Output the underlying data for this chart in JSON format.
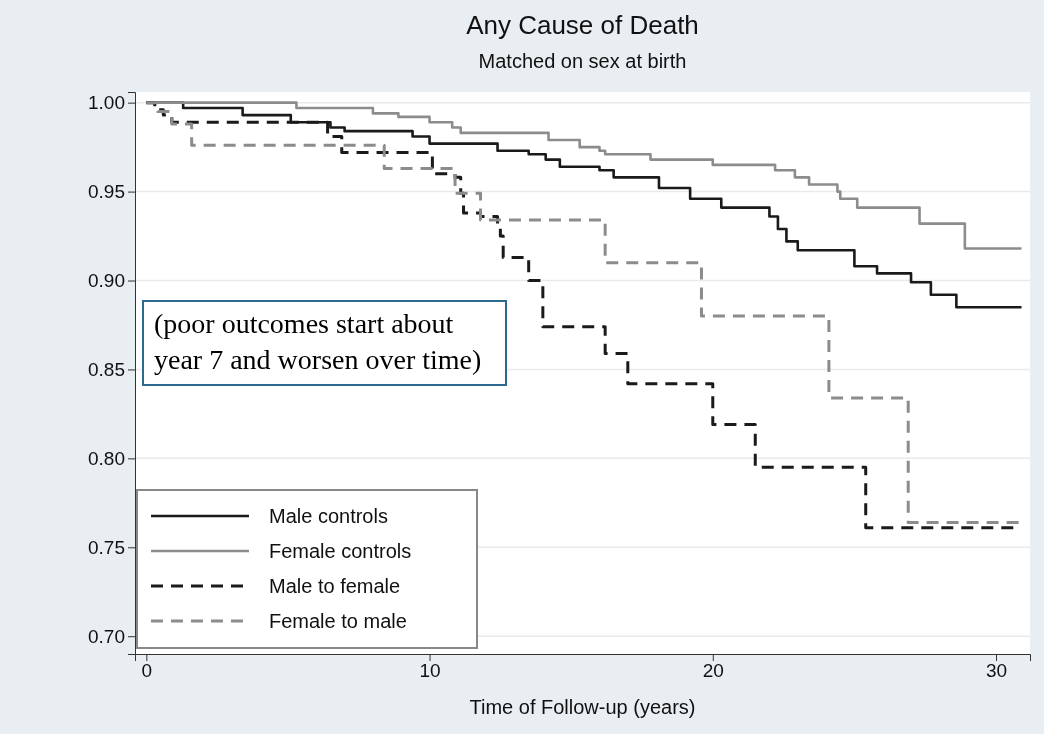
{
  "chart_data": {
    "type": "step",
    "title": "Any Cause of Death",
    "subtitle": "Matched on sex at birth",
    "xlabel": "Time of Follow-up (years)",
    "xlim": [
      -0.4,
      31.2
    ],
    "xticks": [
      0,
      10,
      20,
      30
    ],
    "ylim": [
      0.69,
      1.006
    ],
    "yticks": [
      {
        "value": 0.7,
        "label": "0.70"
      },
      {
        "value": 0.75,
        "label": "0.75"
      },
      {
        "value": 0.8,
        "label": "0.80"
      },
      {
        "value": 0.85,
        "label": "0.85"
      },
      {
        "value": 0.9,
        "label": "0.90"
      },
      {
        "value": 0.95,
        "label": "0.95"
      },
      {
        "value": 1.0,
        "label": "1.00"
      }
    ],
    "grid": "y",
    "legend": "bottom left",
    "annotations": [
      "(poor outcomes start about year 7 and worsen over time)"
    ],
    "series": [
      {
        "name": "Male controls",
        "color": "#1a1a1a",
        "line_style": "solid",
        "x": [
          0,
          1.3,
          3.4,
          5.1,
          6.5,
          7.0,
          9.4,
          10.0,
          12.4,
          13.5,
          14.1,
          14.6,
          16.0,
          16.5,
          18.1,
          19.2,
          20.3,
          22.0,
          22.3,
          22.6,
          23.0,
          25.0,
          25.8,
          27.0,
          27.7,
          28.6,
          30.9
        ],
        "values": [
          1.0,
          0.997,
          0.993,
          0.989,
          0.986,
          0.984,
          0.981,
          0.977,
          0.973,
          0.971,
          0.968,
          0.964,
          0.962,
          0.958,
          0.952,
          0.946,
          0.941,
          0.936,
          0.929,
          0.922,
          0.917,
          0.908,
          0.904,
          0.899,
          0.892,
          0.885,
          0.885
        ]
      },
      {
        "name": "Female controls",
        "color": "#8c8c8c",
        "line_style": "solid",
        "x": [
          0,
          5.3,
          8.0,
          8.9,
          10.0,
          10.8,
          11.1,
          14.2,
          15.3,
          16.0,
          16.2,
          17.8,
          20.0,
          22.2,
          22.9,
          23.4,
          24.4,
          24.5,
          25.1,
          27.3,
          28.9,
          30.9
        ],
        "values": [
          1.0,
          0.997,
          0.994,
          0.992,
          0.989,
          0.986,
          0.983,
          0.979,
          0.975,
          0.973,
          0.971,
          0.968,
          0.965,
          0.962,
          0.958,
          0.954,
          0.95,
          0.946,
          0.941,
          0.932,
          0.918,
          0.918
        ]
      },
      {
        "name": "Male to female",
        "color": "#1a1a1a",
        "line_style": "dashed",
        "x": [
          0,
          0.3,
          0.6,
          0.9,
          6.4,
          6.9,
          10.1,
          10.9,
          11.1,
          11.2,
          11.8,
          12.4,
          12.5,
          12.6,
          13.5,
          14.0,
          16.2,
          17.0,
          20.0,
          21.5,
          25.4,
          30.8
        ],
        "values": [
          1.0,
          0.996,
          0.993,
          0.989,
          0.981,
          0.972,
          0.96,
          0.958,
          0.949,
          0.938,
          0.936,
          0.932,
          0.925,
          0.913,
          0.9,
          0.874,
          0.859,
          0.842,
          0.819,
          0.795,
          0.761,
          0.761
        ]
      },
      {
        "name": "Female to male",
        "color": "#8c8c8c",
        "line_style": "dashed",
        "x": [
          0,
          0.4,
          0.9,
          1.6,
          8.4,
          10.9,
          11.8,
          16.2,
          19.6,
          24.1,
          26.9,
          30.8
        ],
        "values": [
          1.0,
          0.995,
          0.988,
          0.976,
          0.963,
          0.949,
          0.934,
          0.91,
          0.88,
          0.834,
          0.764,
          0.764
        ]
      }
    ]
  }
}
